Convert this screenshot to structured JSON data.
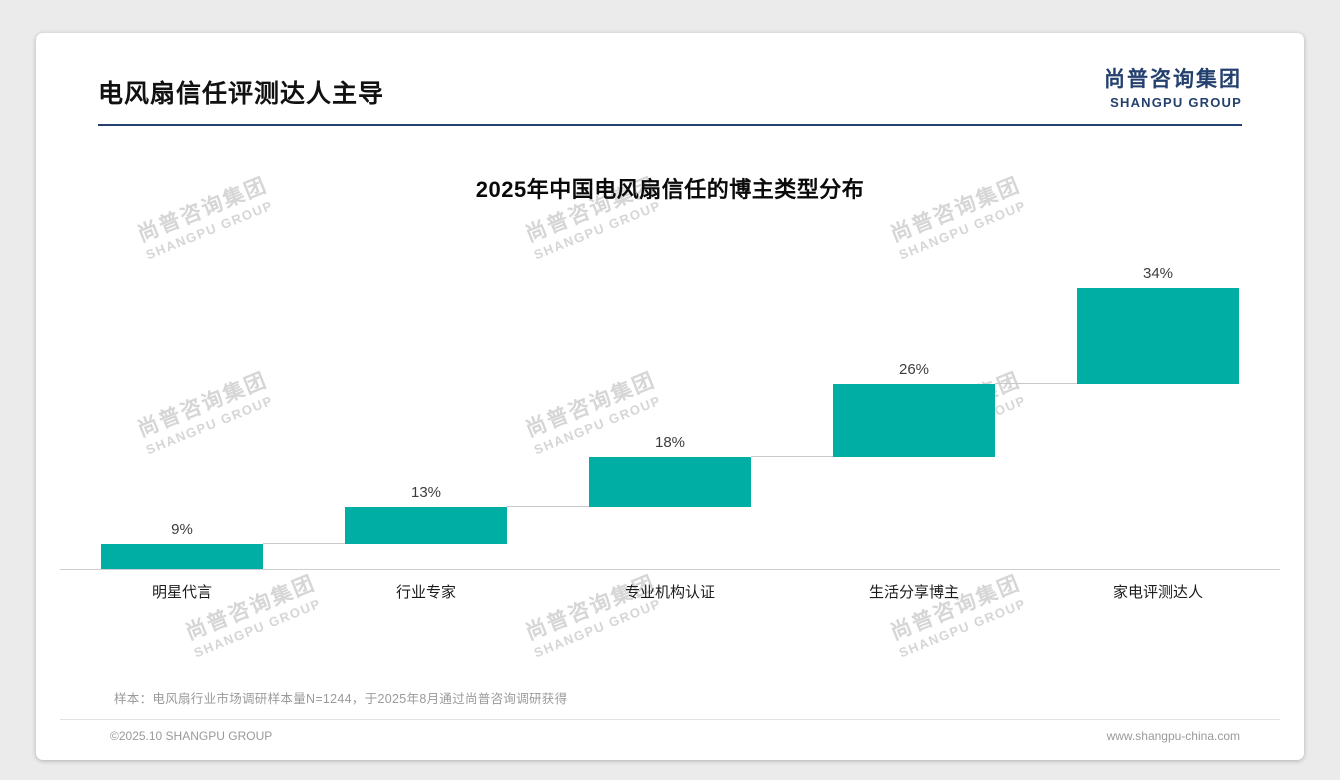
{
  "page": {
    "title": "电风扇信任评测达人主导",
    "logo": {
      "cn": "尚普咨询集团",
      "en": "SHANGPU GROUP"
    }
  },
  "watermark": {
    "cn": "尚普咨询集团",
    "en": "SHANGPU GROUP"
  },
  "chart_data": {
    "type": "bar",
    "variant": "waterfall",
    "title": "2025年中国电风扇信任的博主类型分布",
    "categories": [
      "明星代言",
      "行业专家",
      "专业机构认证",
      "生活分享博主",
      "家电评测达人"
    ],
    "values": [
      9,
      13,
      18,
      26,
      34
    ],
    "value_labels": [
      "9%",
      "13%",
      "18%",
      "26%",
      "34%"
    ],
    "unit": "%",
    "ylim": [
      0,
      100
    ],
    "grid": false,
    "legend": false,
    "bar_color": "#00AEA3"
  },
  "footer": {
    "note": "样本：电风扇行业市场调研样本量N=1244，于2025年8月通过尚普咨询调研获得",
    "copyright": "©2025.10 SHANGPU GROUP",
    "website": "www.shangpu-china.com"
  },
  "colors": {
    "accent": "#00AEA3",
    "navy": "#24406e"
  }
}
